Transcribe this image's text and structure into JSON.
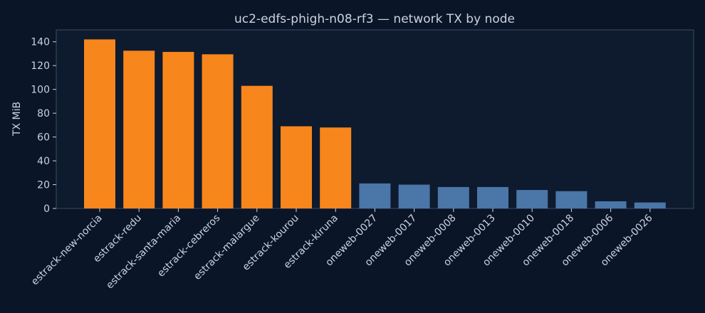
{
  "chart_data": {
    "type": "bar",
    "title": "uc2-edfs-phigh-n08-rf3 — network TX by node",
    "ylabel": "TX MiB",
    "xlabel": "",
    "ylim": [
      0,
      150
    ],
    "yticks": [
      0,
      20,
      40,
      60,
      80,
      100,
      120,
      140
    ],
    "grid": false,
    "categories": [
      "estrack-new-norcia",
      "estrack-redu",
      "estrack-santa-maria",
      "estrack-cebreros",
      "estrack-malargue",
      "estrack-kourou",
      "estrack-kiruna",
      "oneweb-0027",
      "oneweb-0017",
      "oneweb-0008",
      "oneweb-0013",
      "oneweb-0010",
      "oneweb-0018",
      "oneweb-0006",
      "oneweb-0026"
    ],
    "values": [
      142,
      132.5,
      131.5,
      129.5,
      103,
      69,
      68,
      21,
      20,
      18,
      18,
      15.5,
      14.5,
      6,
      5
    ],
    "group_colors": {
      "estrack": "#f7861c",
      "oneweb": "#4a76a8"
    },
    "colors": {
      "background": "#0b1528",
      "plot_background": "#0e1a2e",
      "text": "#c9d3e0"
    }
  }
}
